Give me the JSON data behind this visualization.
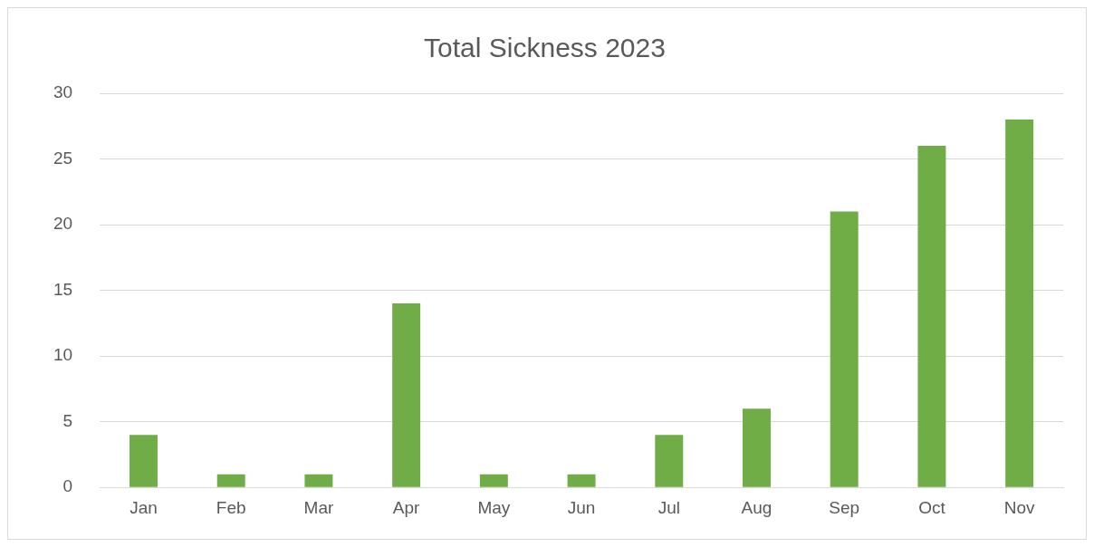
{
  "chart_data": {
    "type": "bar",
    "title": "Total Sickness 2023",
    "categories": [
      "Jan",
      "Feb",
      "Mar",
      "Apr",
      "May",
      "Jun",
      "Jul",
      "Aug",
      "Sep",
      "Oct",
      "Nov"
    ],
    "values": [
      4,
      1,
      1,
      14,
      1,
      1,
      4,
      6,
      21,
      26,
      28
    ],
    "color": "#70ad47",
    "ylim": [
      0,
      30
    ],
    "yticks": [
      0,
      5,
      10,
      15,
      20,
      25,
      30
    ],
    "grid": "y"
  }
}
